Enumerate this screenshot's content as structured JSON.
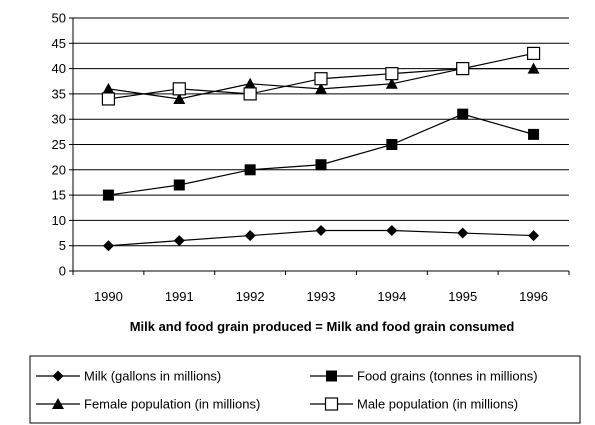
{
  "chart_data": {
    "type": "line",
    "title": "",
    "xlabel": "Milk and food grain produced = Milk and food grain consumed",
    "ylabel": "",
    "categories": [
      "1990",
      "1991",
      "1992",
      "1993",
      "1994",
      "1995",
      "1996"
    ],
    "ylim": [
      0,
      50
    ],
    "yticks": [
      "0",
      "5",
      "10",
      "15",
      "20",
      "25",
      "30",
      "35",
      "40",
      "45",
      "50"
    ],
    "grid": "horizontal",
    "legend_position": "bottom",
    "series": [
      {
        "key": "milk",
        "name": "Milk (gallons in millions)",
        "marker": "diamond",
        "values": [
          5,
          6,
          7,
          8,
          8,
          7.5,
          7
        ]
      },
      {
        "key": "food",
        "name": "Food grains (tonnes in millions)",
        "marker": "square-filled",
        "values": [
          15,
          17,
          20,
          21,
          25,
          31,
          27
        ]
      },
      {
        "key": "female",
        "name": "Female population (in millions)",
        "marker": "triangle",
        "values": [
          36,
          34,
          37,
          36,
          37,
          40,
          40
        ]
      },
      {
        "key": "male",
        "name": "Male population (in millions)",
        "marker": "square-open",
        "values": [
          34,
          36,
          35,
          38,
          39,
          40,
          43
        ]
      }
    ]
  }
}
